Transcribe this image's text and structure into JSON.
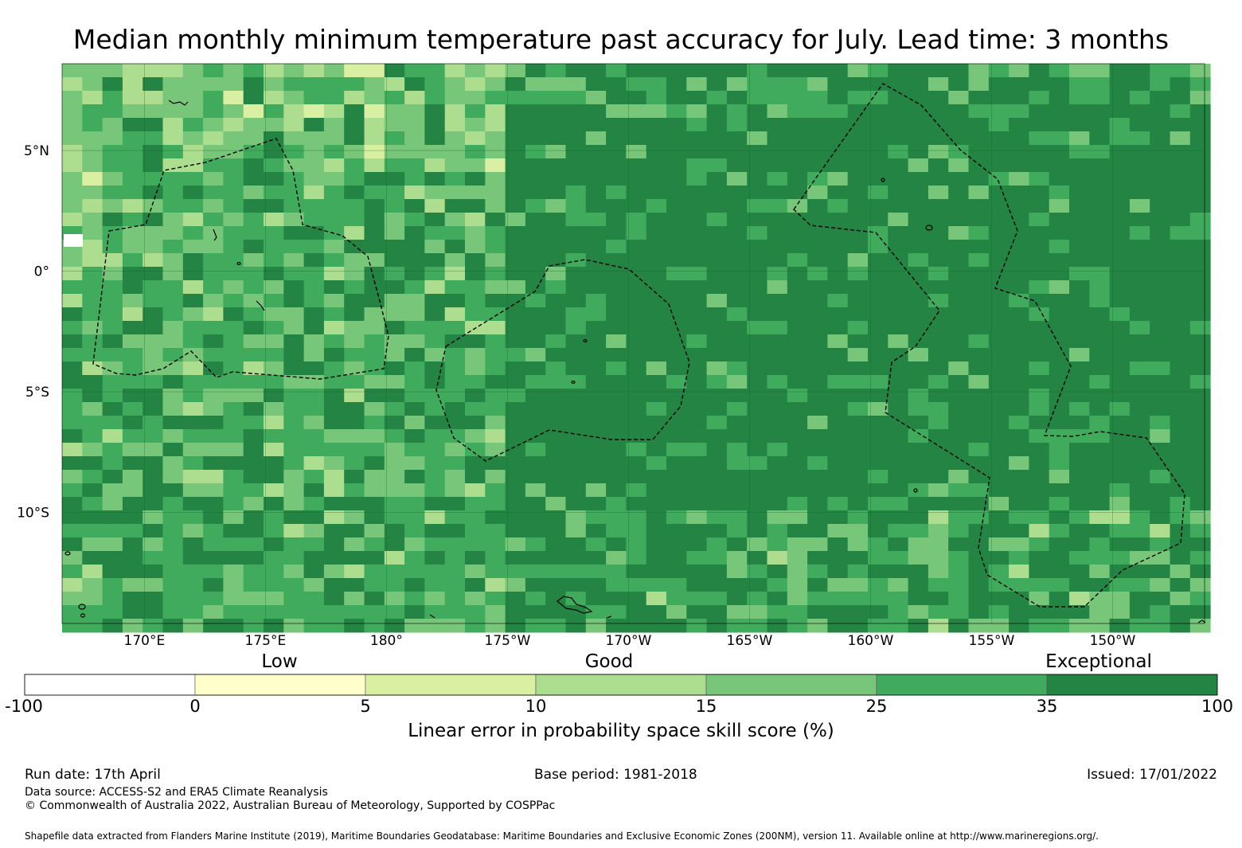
{
  "title": "Median monthly minimum temperature past accuracy for July. Lead time: 3 months",
  "map": {
    "lat_labels": [
      "5°N",
      "0°",
      "5°S",
      "10°S"
    ],
    "lat_values": [
      5,
      0,
      -5,
      -10
    ],
    "lon_labels": [
      "170°E",
      "175°E",
      "180°",
      "175°W",
      "170°W",
      "165°W",
      "160°W",
      "155°W",
      "150°W"
    ],
    "lon_values": [
      170,
      175,
      180,
      185,
      190,
      195,
      200,
      205,
      210
    ],
    "extent": {
      "lon_min": 166.6,
      "lon_max": 213.8,
      "lat_min": -14.6,
      "lat_max": 8.6
    }
  },
  "colorbar": {
    "category_labels": [
      "Low",
      "Good",
      "Exceptional"
    ],
    "ticks": [
      "-100",
      "0",
      "5",
      "10",
      "15",
      "25",
      "35",
      "100"
    ],
    "colors": [
      "#ffffff",
      "#ffffcc",
      "#d9f0a3",
      "#addd8e",
      "#78c679",
      "#41ab5d",
      "#238443"
    ],
    "title": "Linear error in probability space skill score (%)"
  },
  "footer": {
    "run_date": "Run date: 17th April",
    "base_period": "Base period: 1981-2018",
    "issued": "Issued: 17/01/2022",
    "data_source": "Data source: ACCESS-S2 and ERA5 Climate Reanalysis",
    "copyright": "© Commonwealth of Australia 2022, Australian Bureau of Meteorology, Supported by COSPPac",
    "shapefile": "Shapefile data extracted from Flanders Marine Institute (2019), Maritime Boundaries Geodatabase: Maritime Boundaries and Exclusive Economic Zones (200NM), version 11. Available online at http://www.marineregions.org/."
  }
}
